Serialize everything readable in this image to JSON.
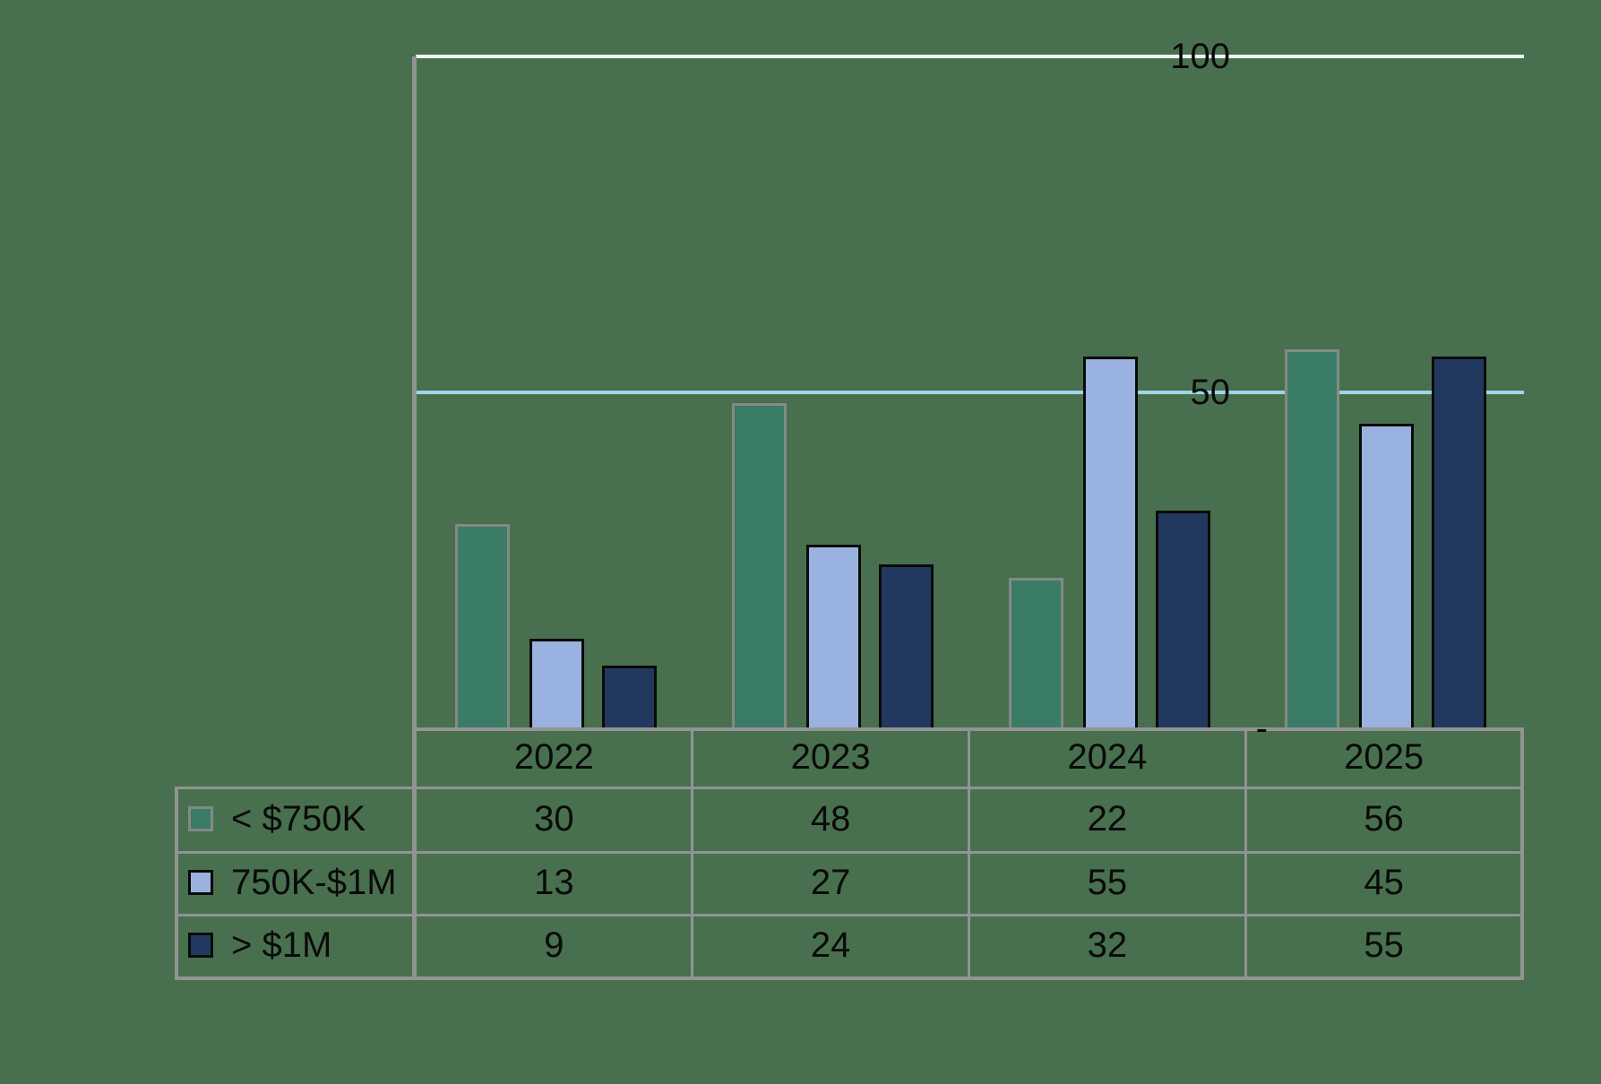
{
  "chart_data": {
    "type": "bar",
    "title": "",
    "xlabel": "",
    "ylabel": "",
    "ylim": [
      0,
      100
    ],
    "grid": true,
    "legend_position": "table-left",
    "categories": [
      "2022",
      "2023",
      "2024",
      "2025"
    ],
    "series": [
      {
        "id": "lt-750k",
        "name": "< $750K",
        "values": [
          30,
          48,
          22,
          56
        ],
        "fill": "#3A7C66",
        "border": "#848A84"
      },
      {
        "id": "750k-1m",
        "name": "750K-$1M",
        "values": [
          13,
          27,
          55,
          45
        ],
        "fill": "#9AB2DF",
        "border": "#0A0A0A"
      },
      {
        "id": "gt-1m",
        "name": "> $1M",
        "values": [
          9,
          24,
          32,
          55
        ],
        "fill": "#22395F",
        "border": "#0A0A0A"
      }
    ],
    "yticks": [
      {
        "value": 0,
        "label": "-",
        "grid_color": null
      },
      {
        "value": 50,
        "label": "50",
        "grid_color": "#A0D6E9"
      },
      {
        "value": 100,
        "label": "100",
        "grid_color": "#EFF4F6"
      }
    ]
  },
  "colors": {
    "background": "#48704E",
    "axis": "#939393",
    "table_border": "#939393",
    "text": "#0A0A0A"
  }
}
